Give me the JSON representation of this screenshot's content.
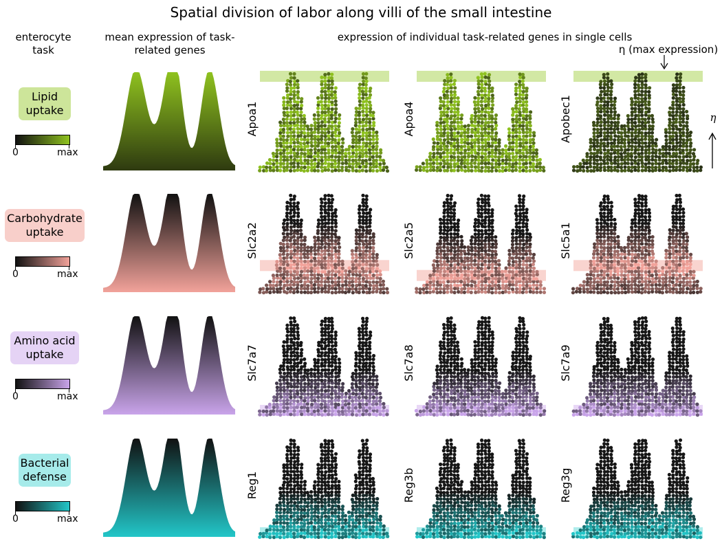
{
  "title": "Spatial division of labor along villi of the small intestine",
  "headers": {
    "task": "enterocyte task",
    "mean": "mean expression of task-related genes",
    "individual": "expression of individual task-related genes in single cells"
  },
  "annotations": {
    "eta_max": "η (max expression)",
    "eta_axis": "η"
  },
  "colorbar": {
    "min_label": "0",
    "max_label": "max"
  },
  "tasks": [
    {
      "name_line1": "Lipid",
      "name_line2": "uptake",
      "color": "#8fc21f",
      "badge": "#cde59a",
      "genes": [
        "Apoa1",
        "Apoa4",
        "Apobec1"
      ],
      "eta_level": [
        1.0,
        1.0,
        1.0
      ]
    },
    {
      "name_line1": "Carbohydrate",
      "name_line2": "uptake",
      "color": "#f2a29a",
      "badge": "#f8cfca",
      "genes": [
        "Slc2a2",
        "Slc2a5",
        "Slc5a1"
      ],
      "eta_level": [
        0.25,
        0.14,
        0.25
      ]
    },
    {
      "name_line1": "Amino acid",
      "name_line2": "uptake",
      "color": "#c9a4ea",
      "badge": "#e5d3f5",
      "genes": [
        "Slc7a7",
        "Slc7a8",
        "Slc7a9"
      ],
      "eta_level": [
        0.0,
        0.0,
        0.0
      ]
    },
    {
      "name_line1": "Bacterial",
      "name_line2": "defense",
      "color": "#22c6c8",
      "badge": "#a6ebea",
      "genes": [
        "Reg1",
        "Reg3b",
        "Reg3g"
      ],
      "eta_level": [
        0.0,
        0.0,
        0.0
      ]
    }
  ]
}
